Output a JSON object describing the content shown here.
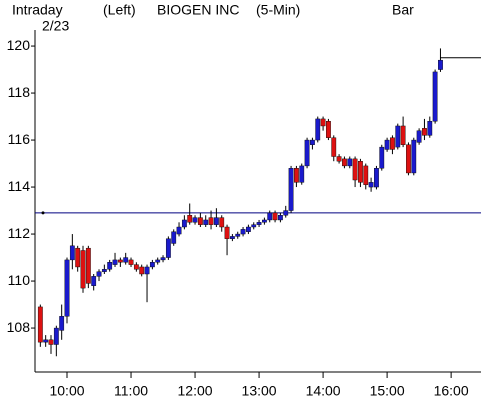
{
  "chart_data": {
    "type": "candlestick",
    "header": [
      "Intraday",
      "(Left)",
      "BIOGEN INC",
      "(5-Min)",
      "Bar"
    ],
    "date": "2/23",
    "x": [
      575,
      580,
      585,
      590,
      595,
      600,
      605,
      610,
      615,
      620,
      625,
      630,
      635,
      640,
      645,
      650,
      655,
      660,
      665,
      670,
      675,
      680,
      685,
      690,
      695,
      700,
      705,
      710,
      715,
      720,
      725,
      730,
      735,
      740,
      745,
      750,
      755,
      760,
      765,
      770,
      775,
      780,
      785,
      790,
      795,
      800,
      805,
      810,
      815,
      820,
      825,
      830,
      835,
      840,
      845,
      850,
      855,
      860,
      865,
      870,
      875,
      880,
      885,
      890,
      895,
      900,
      905,
      910,
      915,
      920,
      925,
      930,
      935,
      940,
      945,
      950
    ],
    "open": [
      108.9,
      107.4,
      107.5,
      107.3,
      107.9,
      108.5,
      110.9,
      111.4,
      111.3,
      111.4,
      109.8,
      110.2,
      110.4,
      110.5,
      110.7,
      110.9,
      110.8,
      110.9,
      110.7,
      110.6,
      110.3,
      110.6,
      110.8,
      110.9,
      111.0,
      111.6,
      112.0,
      112.3,
      112.8,
      112.5,
      112.7,
      112.4,
      112.7,
      112.4,
      112.7,
      112.3,
      111.8,
      111.9,
      112.0,
      112.1,
      112.3,
      112.4,
      112.5,
      112.6,
      112.9,
      112.6,
      112.8,
      113.0,
      114.8,
      114.2,
      114.9,
      115.8,
      116.0,
      116.9,
      116.8,
      116.1,
      115.3,
      115.2,
      114.9,
      115.2,
      115.1,
      114.9,
      114.0,
      114.0,
      114.8,
      115.6,
      116.1,
      115.7,
      116.6,
      115.8,
      114.6,
      115.9,
      116.5,
      116.2,
      116.8,
      119.0
    ],
    "high": [
      109.0,
      107.7,
      107.7,
      108.1,
      109.0,
      111.0,
      112.0,
      111.5,
      111.5,
      111.5,
      110.3,
      110.5,
      110.7,
      110.9,
      111.2,
      111.0,
      111.2,
      111.0,
      110.8,
      110.7,
      110.7,
      110.9,
      111.0,
      111.1,
      111.9,
      112.2,
      112.5,
      112.8,
      113.3,
      112.8,
      112.9,
      112.8,
      113.0,
      113.1,
      112.8,
      112.4,
      112.0,
      112.1,
      112.3,
      112.4,
      112.5,
      112.6,
      112.7,
      113.0,
      113.0,
      112.9,
      113.2,
      114.9,
      114.9,
      115.0,
      116.1,
      116.1,
      117.0,
      117.0,
      116.9,
      116.2,
      115.4,
      115.3,
      115.3,
      115.3,
      115.2,
      115.0,
      114.4,
      114.9,
      115.8,
      116.1,
      116.2,
      116.7,
      117.0,
      115.9,
      116.1,
      116.5,
      116.9,
      117.0,
      119.0,
      119.9
    ],
    "low": [
      107.2,
      107.2,
      106.9,
      106.8,
      107.5,
      108.2,
      110.5,
      110.4,
      109.5,
      109.7,
      109.6,
      110.0,
      110.3,
      110.4,
      110.6,
      110.6,
      110.7,
      110.6,
      110.4,
      110.2,
      109.1,
      110.5,
      110.7,
      110.8,
      110.9,
      111.5,
      111.9,
      112.2,
      112.4,
      112.4,
      112.3,
      112.3,
      112.2,
      112.3,
      112.1,
      111.1,
      111.7,
      111.8,
      111.9,
      112.0,
      112.2,
      112.3,
      112.4,
      112.5,
      112.5,
      112.5,
      112.7,
      112.9,
      114.0,
      114.1,
      114.8,
      115.6,
      115.9,
      116.4,
      116.0,
      115.1,
      115.0,
      114.8,
      114.8,
      114.0,
      114.0,
      113.9,
      113.8,
      113.9,
      114.7,
      115.5,
      115.4,
      115.6,
      115.7,
      114.5,
      114.5,
      115.8,
      116.0,
      116.1,
      116.7,
      118.9
    ],
    "close": [
      107.4,
      107.5,
      107.3,
      108.0,
      108.5,
      110.9,
      111.5,
      110.6,
      109.7,
      109.9,
      110.2,
      110.4,
      110.5,
      110.8,
      110.9,
      110.8,
      111.0,
      110.7,
      110.5,
      110.3,
      110.6,
      110.8,
      110.9,
      111.0,
      111.8,
      112.1,
      112.3,
      112.6,
      112.5,
      112.7,
      112.4,
      112.6,
      112.4,
      112.7,
      112.3,
      111.8,
      111.9,
      112.0,
      112.2,
      112.3,
      112.4,
      112.5,
      112.6,
      112.9,
      112.6,
      112.8,
      113.0,
      114.8,
      114.2,
      114.9,
      116.0,
      116.0,
      116.9,
      116.6,
      116.1,
      115.3,
      115.1,
      114.9,
      115.2,
      114.3,
      114.2,
      114.1,
      114.2,
      114.8,
      115.7,
      116.0,
      115.6,
      116.6,
      115.8,
      114.6,
      116.0,
      116.4,
      116.2,
      116.8,
      118.9,
      119.4
    ],
    "up_color": "#1a1acc",
    "down_color": "#dd1111",
    "reference_line": 112.9,
    "reference_color": "#000080",
    "last_price": 119.5,
    "xlim": [
      570,
      988
    ],
    "ylim": [
      106.13,
      121.96
    ],
    "yticks": [
      108,
      110,
      112,
      114,
      116,
      118,
      120
    ],
    "xticks": [
      {
        "value": 600,
        "label": "10:00"
      },
      {
        "value": 660,
        "label": "11:00"
      },
      {
        "value": 720,
        "label": "12:00"
      },
      {
        "value": 780,
        "label": "13:00"
      },
      {
        "value": 840,
        "label": "14:00"
      },
      {
        "value": 900,
        "label": "15:00"
      },
      {
        "value": 960,
        "label": "16:00"
      }
    ]
  }
}
